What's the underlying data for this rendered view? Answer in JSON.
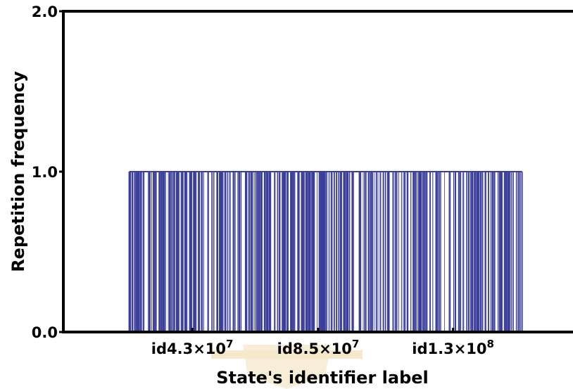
{
  "chart_data": {
    "type": "bar",
    "title": "",
    "xlabel": "State's identifier label",
    "ylabel": "Repetition frequency",
    "ylim": [
      0,
      2
    ],
    "xlim": [
      0,
      170000000
    ],
    "y_ticks": [
      {
        "value": 0,
        "label": "0.0"
      },
      {
        "value": 1,
        "label": "1.0"
      },
      {
        "value": 2,
        "label": "2.0"
      }
    ],
    "x_ticks": [
      {
        "value": 43000000,
        "base": "id4.3×10",
        "exp": "7"
      },
      {
        "value": 85000000,
        "base": "id8.5×10",
        "exp": "7"
      },
      {
        "value": 130000000,
        "base": "id1.3×10",
        "exp": "8"
      }
    ],
    "series": [
      {
        "bar_value": 1,
        "x_range": [
          22000000,
          153000000
        ],
        "bar_count": 420,
        "color": "#3b3f9a"
      }
    ],
    "grid": false,
    "legend": "none"
  },
  "watermark": {
    "shield_color": "#f5e3bf",
    "text_color": "#f3d9a8"
  }
}
